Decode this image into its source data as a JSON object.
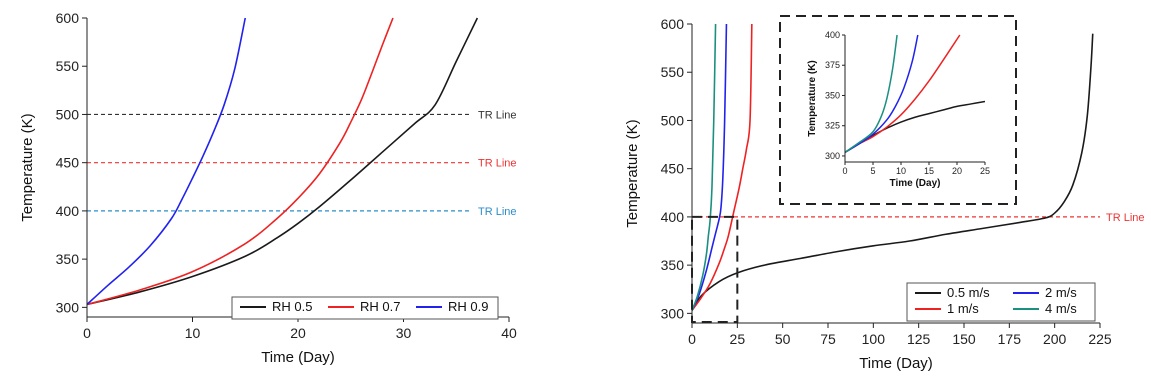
{
  "chart_data": [
    {
      "type": "line",
      "xlabel": "Time (Day)",
      "ylabel": "Temperature (K)",
      "xlim": [
        0,
        40
      ],
      "ylim": [
        290,
        600
      ],
      "xticks": [
        0,
        10,
        20,
        30,
        40
      ],
      "yticks": [
        300,
        350,
        400,
        450,
        500,
        550,
        600
      ],
      "legend_position": "bottom-right",
      "series": [
        {
          "name": "RH 0.5",
          "color": "#1a1a1a",
          "x": [
            0,
            5,
            10,
            15,
            18,
            20,
            22,
            25,
            28,
            31,
            33,
            35,
            37
          ],
          "y": [
            303,
            316,
            332,
            353,
            372,
            387,
            404,
            432,
            461,
            490,
            510,
            555,
            600
          ]
        },
        {
          "name": "RH 0.7",
          "color": "#ee2222",
          "x": [
            0,
            5,
            10,
            15,
            18,
            20,
            22,
            24,
            25,
            26,
            27,
            28,
            29
          ],
          "y": [
            303,
            318,
            337,
            366,
            392,
            413,
            438,
            471,
            492,
            515,
            543,
            572,
            600
          ]
        },
        {
          "name": "RH 0.9",
          "color": "#2222ee",
          "x": [
            0,
            2,
            4,
            6,
            8,
            9,
            10,
            11,
            12,
            13,
            14,
            15
          ],
          "y": [
            303,
            323,
            342,
            364,
            392,
            412,
            434,
            457,
            482,
            510,
            547,
            600
          ]
        }
      ],
      "reference_lines": [
        {
          "y": 500,
          "label": "TR Line",
          "color": "#333333"
        },
        {
          "y": 450,
          "label": "TR Line",
          "color": "#ee3333"
        },
        {
          "y": 400,
          "label": "TR Line",
          "color": "#2a8ec8"
        }
      ]
    },
    {
      "type": "line",
      "xlabel": "Time (Day)",
      "ylabel": "Temperature (K)",
      "xlim": [
        0,
        225
      ],
      "ylim": [
        290,
        600
      ],
      "xticks": [
        0,
        25,
        50,
        75,
        100,
        125,
        150,
        175,
        200,
        225
      ],
      "yticks": [
        300,
        350,
        400,
        450,
        500,
        550,
        600
      ],
      "legend_position": "bottom-right",
      "series": [
        {
          "name": "0.5 m/s",
          "color": "#1a1a1a",
          "x": [
            0,
            5,
            15,
            25,
            40,
            60,
            80,
            100,
            120,
            140,
            160,
            180,
            195,
            200,
            205,
            210,
            215,
            218,
            220,
            221
          ],
          "y": [
            303,
            318,
            333,
            342,
            350,
            357,
            364,
            370,
            375,
            382,
            388,
            394,
            399,
            404,
            415,
            433,
            467,
            505,
            555,
            590
          ]
        },
        {
          "name": "1 m/s",
          "color": "#ee2222",
          "x": [
            0,
            5,
            10,
            15,
            18,
            20,
            23,
            26,
            28,
            30,
            32,
            33
          ],
          "y": [
            303,
            316,
            331,
            352,
            368,
            380,
            405,
            430,
            450,
            470,
            500,
            600
          ]
        },
        {
          "name": "2 m/s",
          "color": "#2222ee",
          "x": [
            0,
            4,
            8,
            11,
            13,
            15,
            16,
            17,
            18,
            19
          ],
          "y": [
            303,
            320,
            345,
            368,
            383,
            398,
            410,
            440,
            500,
            600
          ]
        },
        {
          "name": "4 m/s",
          "color": "#1a9080",
          "x": [
            0,
            3,
            6,
            8,
            9,
            10,
            11,
            12,
            13
          ],
          "y": [
            303,
            318,
            340,
            362,
            380,
            397,
            430,
            500,
            600
          ]
        }
      ],
      "reference_lines": [
        {
          "y": 400,
          "label": "TR Line",
          "color": "#ee3333"
        }
      ],
      "inset": {
        "type": "line",
        "xlabel": "Time (Day)",
        "ylabel": "Temperature (K)",
        "xlim": [
          0,
          25
        ],
        "ylim": [
          295,
          400
        ],
        "xticks": [
          0,
          5,
          10,
          15,
          20,
          25
        ],
        "yticks": [
          300,
          325,
          350,
          375,
          400
        ],
        "series": [
          {
            "name": "0.5 m/s",
            "color": "#1a1a1a",
            "x": [
              0,
              2.5,
              5,
              7.5,
              10,
              12.5,
              15,
              17.5,
              20,
              22.5,
              25
            ],
            "y": [
              303,
              310,
              317,
              323,
              328,
              332,
              335,
              338,
              341,
              343,
              345
            ]
          },
          {
            "name": "1 m/s",
            "color": "#ee2222",
            "x": [
              0,
              2.5,
              5,
              7.5,
              10,
              12.5,
              15,
              17.5,
              20.5
            ],
            "y": [
              303,
              310,
              316,
              324,
              334,
              347,
              362,
              379,
              400
            ]
          },
          {
            "name": "2 m/s",
            "color": "#2222ee",
            "x": [
              0,
              2.5,
              5,
              7.5,
              9,
              10.5,
              12,
              13
            ],
            "y": [
              303,
              310,
              318,
              330,
              341,
              356,
              378,
              400
            ]
          },
          {
            "name": "4 m/s",
            "color": "#1a9080",
            "x": [
              0,
              2.5,
              5,
              6.5,
              7.5,
              8.5,
              9.3
            ],
            "y": [
              303,
              311,
              320,
              333,
              348,
              372,
              400
            ]
          }
        ]
      }
    }
  ]
}
